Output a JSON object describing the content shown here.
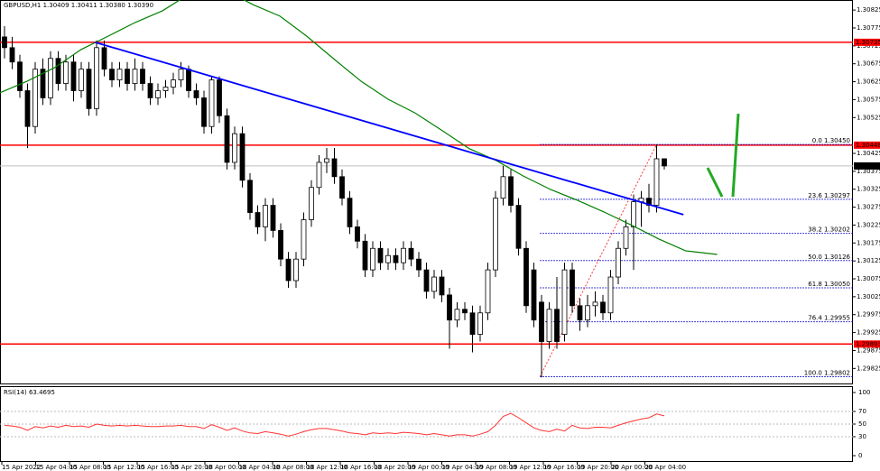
{
  "chart_data": {
    "type": "candlestick",
    "title": "GBPUSD,H1  1.30409 1.30411 1.30380 1.30390",
    "categories": [
      "15 Apr 2022",
      "15 Apr 04:00",
      "15 Apr 08:00",
      "15 Apr 12:00",
      "15 Apr 16:00",
      "15 Apr 20:00",
      "18 Apr 00:00",
      "18 Apr 04:00",
      "18 Apr 08:00",
      "18 Apr 12:00",
      "18 Apr 16:00",
      "18 Apr 20:00",
      "19 Apr 00:00",
      "19 Apr 04:00",
      "19 Apr 08:00",
      "19 Apr 12:00",
      "19 Apr 16:00",
      "19 Apr 20:00",
      "20 Apr 00:00",
      "20 Apr 04:00"
    ],
    "ohlc": [
      [
        1.3075,
        1.3078,
        1.3069,
        1.3072
      ],
      [
        1.3072,
        1.3075,
        1.3066,
        1.3068
      ],
      [
        1.3068,
        1.307,
        1.3058,
        1.306
      ],
      [
        1.306,
        1.3062,
        1.3044,
        1.305
      ],
      [
        1.305,
        1.3068,
        1.3048,
        1.3066
      ],
      [
        1.3066,
        1.3069,
        1.3056,
        1.3058
      ],
      [
        1.3058,
        1.3071,
        1.3056,
        1.3069
      ],
      [
        1.3069,
        1.3071,
        1.306,
        1.3062
      ],
      [
        1.3062,
        1.307,
        1.306,
        1.3068
      ],
      [
        1.3068,
        1.307,
        1.3057,
        1.306
      ],
      [
        1.306,
        1.3068,
        1.3058,
        1.3066
      ],
      [
        1.3066,
        1.3068,
        1.3053,
        1.3055
      ],
      [
        1.3055,
        1.3074,
        1.3053,
        1.3072
      ],
      [
        1.3072,
        1.3074,
        1.3064,
        1.3066
      ],
      [
        1.3066,
        1.3068,
        1.3061,
        1.3063
      ],
      [
        1.3063,
        1.3068,
        1.3061,
        1.3066
      ],
      [
        1.3066,
        1.3068,
        1.306,
        1.3062
      ],
      [
        1.3062,
        1.3069,
        1.306,
        1.3066
      ],
      [
        1.3066,
        1.3068,
        1.306,
        1.3062
      ],
      [
        1.3062,
        1.3064,
        1.3056,
        1.3058
      ],
      [
        1.3058,
        1.3062,
        1.3056,
        1.306
      ],
      [
        1.306,
        1.3063,
        1.3058,
        1.3061
      ],
      [
        1.3061,
        1.3065,
        1.3059,
        1.3063
      ],
      [
        1.3063,
        1.3068,
        1.3061,
        1.3066
      ],
      [
        1.3066,
        1.3067,
        1.3058,
        1.306
      ],
      [
        1.306,
        1.3062,
        1.3056,
        1.3058
      ],
      [
        1.3058,
        1.306,
        1.3048,
        1.305
      ],
      [
        1.305,
        1.3064,
        1.3048,
        1.3063
      ],
      [
        1.3063,
        1.3064,
        1.3051,
        1.3053
      ],
      [
        1.3053,
        1.3055,
        1.3038,
        1.304
      ],
      [
        1.304,
        1.305,
        1.3038,
        1.3048
      ],
      [
        1.3048,
        1.305,
        1.3033,
        1.3035
      ],
      [
        1.3035,
        1.3037,
        1.3024,
        1.3026
      ],
      [
        1.3026,
        1.3028,
        1.302,
        1.3022
      ],
      [
        1.3022,
        1.303,
        1.3018,
        1.3028
      ],
      [
        1.3028,
        1.303,
        1.3019,
        1.3021
      ],
      [
        1.3021,
        1.3023,
        1.3011,
        1.3013
      ],
      [
        1.3013,
        1.3015,
        1.3005,
        1.3007
      ],
      [
        1.3007,
        1.3015,
        1.3005,
        1.3013
      ],
      [
        1.3013,
        1.3026,
        1.3011,
        1.3024
      ],
      [
        1.3024,
        1.3035,
        1.3022,
        1.3033
      ],
      [
        1.3033,
        1.3042,
        1.3031,
        1.304
      ],
      [
        1.304,
        1.3044,
        1.3037,
        1.3041
      ],
      [
        1.3041,
        1.3044,
        1.3034,
        1.3036
      ],
      [
        1.3036,
        1.3038,
        1.3028,
        1.303
      ],
      [
        1.303,
        1.3032,
        1.302,
        1.3022
      ],
      [
        1.3022,
        1.3024,
        1.3016,
        1.3018
      ],
      [
        1.3018,
        1.302,
        1.3008,
        1.301
      ],
      [
        1.301,
        1.3018,
        1.3008,
        1.3016
      ],
      [
        1.3016,
        1.3018,
        1.301,
        1.3012
      ],
      [
        1.3012,
        1.3016,
        1.301,
        1.3014
      ],
      [
        1.3014,
        1.3016,
        1.301,
        1.3012
      ],
      [
        1.3012,
        1.3018,
        1.301,
        1.3016
      ],
      [
        1.3016,
        1.3018,
        1.3011,
        1.3013
      ],
      [
        1.3013,
        1.3015,
        1.3008,
        1.301
      ],
      [
        1.301,
        1.3012,
        1.3002,
        1.3004
      ],
      [
        1.3004,
        1.301,
        1.3002,
        1.3008
      ],
      [
        1.3008,
        1.301,
        1.3001,
        1.3003
      ],
      [
        1.3003,
        1.3005,
        1.2988,
        1.2996
      ],
      [
        1.2996,
        1.3001,
        1.2994,
        1.2999
      ],
      [
        1.2999,
        1.3001,
        1.2996,
        1.2998
      ],
      [
        1.2998,
        1.3,
        1.2987,
        1.2992
      ],
      [
        1.2992,
        1.3,
        1.299,
        1.2998
      ],
      [
        1.2998,
        1.3012,
        1.2996,
        1.301
      ],
      [
        1.301,
        1.3032,
        1.3008,
        1.303
      ],
      [
        1.303,
        1.3039,
        1.3028,
        1.3036
      ],
      [
        1.3036,
        1.3038,
        1.3026,
        1.3028
      ],
      [
        1.3028,
        1.303,
        1.3014,
        1.3016
      ],
      [
        1.3016,
        1.3018,
        1.2998,
        1.3
      ],
      [
        1.301,
        1.3012,
        1.2994,
        1.2996
      ],
      [
        1.3001,
        1.3003,
        1.298,
        1.299
      ],
      [
        1.299,
        1.3001,
        1.2988,
        1.2999
      ],
      [
        1.2999,
        1.3008,
        1.2988,
        1.299
      ],
      [
        1.2992,
        1.3012,
        1.299,
        1.301
      ],
      [
        1.301,
        1.3012,
        1.2998,
        1.3
      ],
      [
        1.3,
        1.3002,
        1.2993,
        1.2996
      ],
      [
        1.2996,
        1.3003,
        1.2994,
        1.3
      ],
      [
        1.3,
        1.3004,
        1.2997,
        1.3001
      ],
      [
        1.3001,
        1.3003,
        1.2996,
        1.2998
      ],
      [
        1.2998,
        1.301,
        1.2996,
        1.3008
      ],
      [
        1.3008,
        1.3018,
        1.3006,
        1.3016
      ],
      [
        1.3016,
        1.3024,
        1.3014,
        1.3022
      ],
      [
        1.3022,
        1.3031,
        1.301,
        1.3029
      ],
      [
        1.3029,
        1.3032,
        1.3022,
        1.303
      ],
      [
        1.303,
        1.3034,
        1.3026,
        1.3028
      ],
      [
        1.3028,
        1.3045,
        1.3026,
        1.3041
      ],
      [
        1.3041,
        1.3041,
        1.3038,
        1.3039
      ]
    ],
    "ylim": [
      1.29783,
      1.30853
    ],
    "yticks": [
      1.30825,
      1.30775,
      1.30725,
      1.30675,
      1.30625,
      1.30575,
      1.30525,
      1.30425,
      1.30375,
      1.30325,
      1.30275,
      1.30225,
      1.30175,
      1.30125,
      1.30075,
      1.30025,
      1.29975,
      1.29925,
      1.29875,
      1.29825
    ],
    "moving_average": {
      "color": "#008000",
      "x": [
        -0.6,
        2.9,
        6.5,
        10,
        13.5,
        17,
        20.6,
        24.1,
        28.8,
        32.4,
        35.9,
        39.4,
        42.9,
        46.5,
        50,
        53.5,
        57.1,
        60.6,
        64.1,
        67.6,
        71.2,
        74.7,
        78.2,
        81.8,
        85.3,
        88.8,
        92.9
      ],
      "values": [
        1.30594,
        1.30626,
        1.30664,
        1.30715,
        1.30752,
        1.3079,
        1.30823,
        1.3087,
        1.3088,
        1.3084,
        1.30808,
        1.30752,
        1.30689,
        1.30626,
        1.30576,
        1.30538,
        1.30488,
        1.30438,
        1.30405,
        1.30362,
        1.30324,
        1.30294,
        1.30261,
        1.30224,
        1.30186,
        1.30153,
        1.30143
      ]
    },
    "trendline": {
      "color": "#0000ff",
      "x": [
        11.8,
        88.5
      ],
      "values": [
        1.30735,
        1.30254
      ]
    },
    "levels": {
      "color": "#ff0000",
      "values": [
        1.30735,
        1.30448,
        1.29893
      ]
    },
    "current_price": {
      "value": 1.3039,
      "label": "1.30390"
    },
    "fibonacci": {
      "color": "#0000cc",
      "x": [
        69.8,
        85
      ],
      "values": [
        1.29802,
        1.3045
      ],
      "levels": [
        {
          "value": 1.3045,
          "label": "0.0 1.30450"
        },
        {
          "value": 1.30297,
          "label": "23.6 1.30297"
        },
        {
          "value": 1.30202,
          "label": "38.2 1.30202"
        },
        {
          "value": 1.30126,
          "label": "50.0 1.30126"
        },
        {
          "value": 1.3005,
          "label": "61.8 1.30050"
        },
        {
          "value": 1.29955,
          "label": "76.4 1.29955"
        },
        {
          "value": 1.29802,
          "label": "100.0 1.29802"
        }
      ]
    },
    "rsi": {
      "label": "RSI(14) 63.4695",
      "color": "#ff3333",
      "values": [
        48,
        47,
        45,
        40,
        46,
        44,
        47,
        45,
        48,
        46,
        47,
        45,
        50,
        48,
        47,
        48,
        47,
        48,
        47,
        46,
        46,
        47,
        47,
        48,
        46,
        46,
        43,
        49,
        45,
        40,
        44,
        39,
        36,
        35,
        38,
        36,
        34,
        31,
        34,
        38,
        41,
        43,
        43,
        41,
        39,
        36,
        35,
        33,
        36,
        35,
        36,
        35,
        37,
        36,
        35,
        33,
        35,
        33,
        31,
        33,
        33,
        31,
        34,
        38,
        48,
        62,
        67,
        60,
        52,
        44,
        40,
        38,
        42,
        39,
        48,
        44,
        43,
        45,
        45,
        44,
        48,
        52,
        55,
        58,
        60,
        66,
        63
      ],
      "ylim": [
        -10,
        110
      ],
      "yticks": [
        100,
        70,
        50,
        30,
        0
      ]
    }
  }
}
